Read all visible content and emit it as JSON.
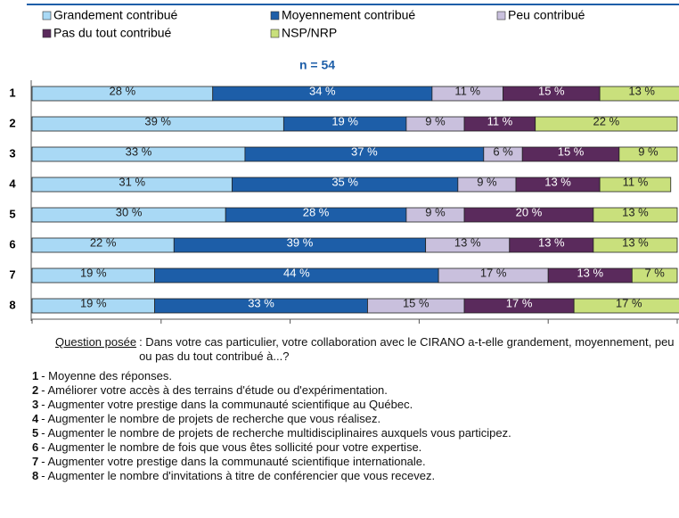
{
  "chart_data": {
    "type": "stacked-barh",
    "title": "n = 54",
    "categories": [
      "1",
      "2",
      "3",
      "4",
      "5",
      "6",
      "7",
      "8"
    ],
    "series": [
      {
        "name": "Grandement contribué",
        "color": "#a9d9f5",
        "values": [
          28,
          39,
          33,
          31,
          30,
          22,
          19,
          19
        ],
        "value_labels": [
          "28 %",
          "39 %",
          "33 %",
          "31 %",
          "30 %",
          "22 %",
          "19 %",
          "19 %"
        ]
      },
      {
        "name": "Moyennement contribué",
        "color": "#1d5ea8",
        "values": [
          34,
          19,
          37,
          35,
          28,
          39,
          44,
          33
        ],
        "value_labels": [
          "34 %",
          "19 %",
          "37 %",
          "35 %",
          "28 %",
          "39 %",
          "44 %",
          "33 %"
        ]
      },
      {
        "name": "Peu contribué",
        "color": "#c9c0dd",
        "values": [
          11,
          9,
          6,
          9,
          9,
          13,
          17,
          15
        ],
        "value_labels": [
          "11 %",
          "9 %",
          "6 %",
          "9 %",
          "9 %",
          "13 %",
          "17 %",
          "15 %"
        ]
      },
      {
        "name": "Pas du tout contribué",
        "color": "#5a2a5c",
        "values": [
          15,
          11,
          15,
          13,
          20,
          13,
          13,
          17
        ],
        "value_labels": [
          "15 %",
          "11 %",
          "15 %",
          "13 %",
          "20 %",
          "13 %",
          "13 %",
          "17 %"
        ]
      },
      {
        "name": "NSP/NRP",
        "color": "#c9e07c",
        "values": [
          13,
          22,
          9,
          11,
          13,
          13,
          7,
          17
        ],
        "value_labels": [
          "13 %",
          "22 %",
          "9 %",
          "11 %",
          "13 %",
          "13 %",
          "7 %",
          "17 %"
        ]
      }
    ],
    "xlim": [
      0,
      100
    ],
    "xticks": [
      0,
      20,
      40,
      60,
      80,
      100
    ]
  },
  "notes": {
    "question_label": "Question posée",
    "question_text": ": Dans votre cas particulier, votre collaboration avec le CIRANO a-t-elle grandement, moyennement, peu ou pas du tout contribué à...?",
    "items": [
      {
        "number": "1",
        "text": "- Moyenne des réponses."
      },
      {
        "number": "2",
        "text": "- Améliorer votre accès à des terrains d'étude ou d'expérimentation."
      },
      {
        "number": "3",
        "text": "- Augmenter votre prestige dans la communauté scientifique au Québec."
      },
      {
        "number": "4",
        "text": "- Augmenter le nombre de projets de recherche que vous réalisez."
      },
      {
        "number": "5",
        "text": "- Augmenter le nombre de projets de recherche multidisciplinaires auxquels vous participez."
      },
      {
        "number": "6",
        "text": "- Augmenter le nombre de fois que vous êtes sollicité pour votre expertise."
      },
      {
        "number": "7",
        "text": "- Augmenter votre prestige dans la communauté scientifique internationale."
      },
      {
        "number": "8",
        "text": "- Augmenter le nombre d'invitations à titre de conférencier que vous recevez."
      }
    ]
  }
}
